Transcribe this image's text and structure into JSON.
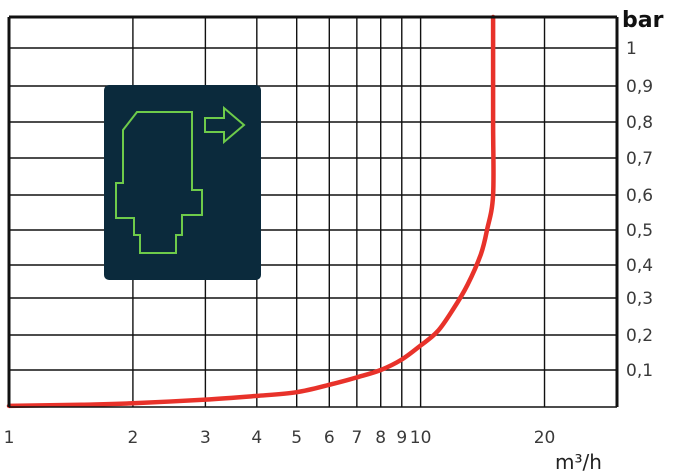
{
  "chart_data": {
    "type": "line",
    "xscale": "log",
    "yscale": "log-like",
    "xlabel": "m³/h",
    "ylabel": "bar",
    "xlim": [
      1,
      30
    ],
    "ylim": [
      0,
      1.1
    ],
    "x_ticks": [
      1,
      2,
      3,
      4,
      5,
      6,
      7,
      8,
      9,
      10,
      20
    ],
    "x_tick_labels": [
      "1",
      "2",
      "3",
      "4",
      "5",
      "6",
      "7",
      "8",
      "9",
      "10",
      "20"
    ],
    "y_ticks": [
      0.1,
      0.2,
      0.3,
      0.4,
      0.5,
      0.6,
      0.7,
      0.8,
      0.9,
      1.0
    ],
    "y_tick_labels": [
      "0,1",
      "0,2",
      "0,3",
      "0,4",
      "0,5",
      "0,6",
      "0,7",
      "0,8",
      "0,9",
      "1"
    ],
    "grid": true,
    "series": [
      {
        "color": "#e8322a",
        "x": [
          1,
          1.5,
          2,
          3,
          4,
          5,
          6,
          7,
          8,
          9,
          10,
          11,
          12,
          13,
          14,
          14.5,
          15,
          15,
          15
        ],
        "y": [
          0.003,
          0.006,
          0.01,
          0.02,
          0.03,
          0.04,
          0.06,
          0.08,
          0.1,
          0.13,
          0.17,
          0.21,
          0.27,
          0.34,
          0.43,
          0.5,
          0.6,
          0.8,
          1.1
        ]
      }
    ],
    "inset_icon": "valve-flow-icon",
    "colors": {
      "curve": "#e8322a",
      "inset_bg": "#0b2a3c",
      "inset_icon": "#6ecb4a",
      "grid": "#111111"
    }
  }
}
